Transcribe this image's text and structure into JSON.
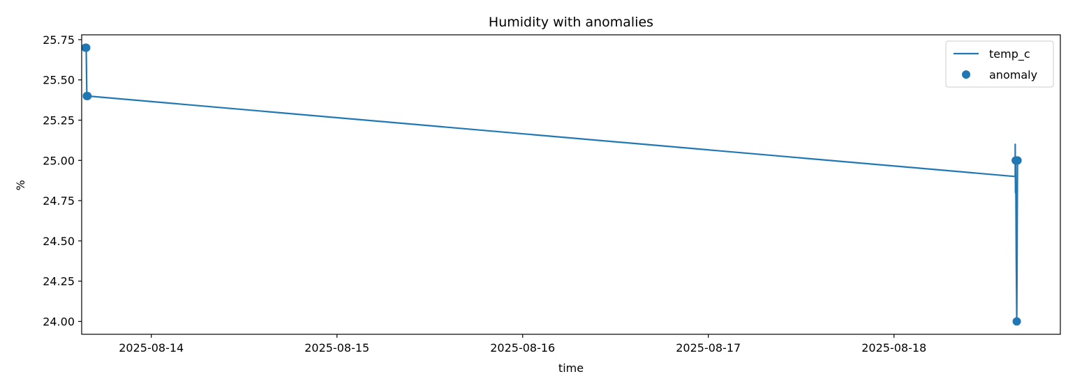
{
  "chart_data": {
    "type": "line",
    "title": "Humidity with anomalies",
    "xlabel": "time",
    "ylabel": "%",
    "xlim": [
      "2025-08-13T15:00",
      "2025-08-18T21:30"
    ],
    "ylim": [
      23.92,
      25.78
    ],
    "x_ticks": [
      "2025-08-14",
      "2025-08-15",
      "2025-08-16",
      "2025-08-17",
      "2025-08-18"
    ],
    "y_ticks": [
      "24.00",
      "24.25",
      "24.50",
      "24.75",
      "25.00",
      "25.25",
      "25.50",
      "25.75"
    ],
    "grid": false,
    "legend": {
      "placement": "upper right",
      "entries": [
        "temp_c",
        "anomaly"
      ]
    },
    "colors": {
      "series": "#1f77b4"
    },
    "series": [
      {
        "name": "temp_c",
        "kind": "line",
        "points": [
          [
            "2025-08-13T15:30",
            25.7
          ],
          [
            "2025-08-13T15:35",
            25.7
          ],
          [
            "2025-08-13T15:40",
            25.4
          ],
          [
            "2025-08-13T15:45",
            25.4
          ],
          [
            "2025-08-18T15:40",
            24.9
          ],
          [
            "2025-08-18T15:40",
            25.1
          ],
          [
            "2025-08-18T15:42",
            24.8
          ],
          [
            "2025-08-18T15:44",
            25.0
          ],
          [
            "2025-08-18T15:46",
            24.7
          ],
          [
            "2025-08-18T15:48",
            24.4
          ],
          [
            "2025-08-18T15:50",
            24.2
          ],
          [
            "2025-08-18T15:52",
            24.0
          ],
          [
            "2025-08-18T15:54",
            24.3
          ],
          [
            "2025-08-18T15:56",
            24.7
          ],
          [
            "2025-08-18T15:58",
            25.0
          ]
        ]
      },
      {
        "name": "anomaly",
        "kind": "scatter",
        "points": [
          [
            "2025-08-13T15:30",
            25.7
          ],
          [
            "2025-08-13T15:35",
            25.7
          ],
          [
            "2025-08-13T15:40",
            25.4
          ],
          [
            "2025-08-13T15:45",
            25.4
          ],
          [
            "2025-08-18T15:44",
            25.0
          ],
          [
            "2025-08-18T15:52",
            24.0
          ],
          [
            "2025-08-18T15:58",
            25.0
          ]
        ]
      }
    ]
  }
}
